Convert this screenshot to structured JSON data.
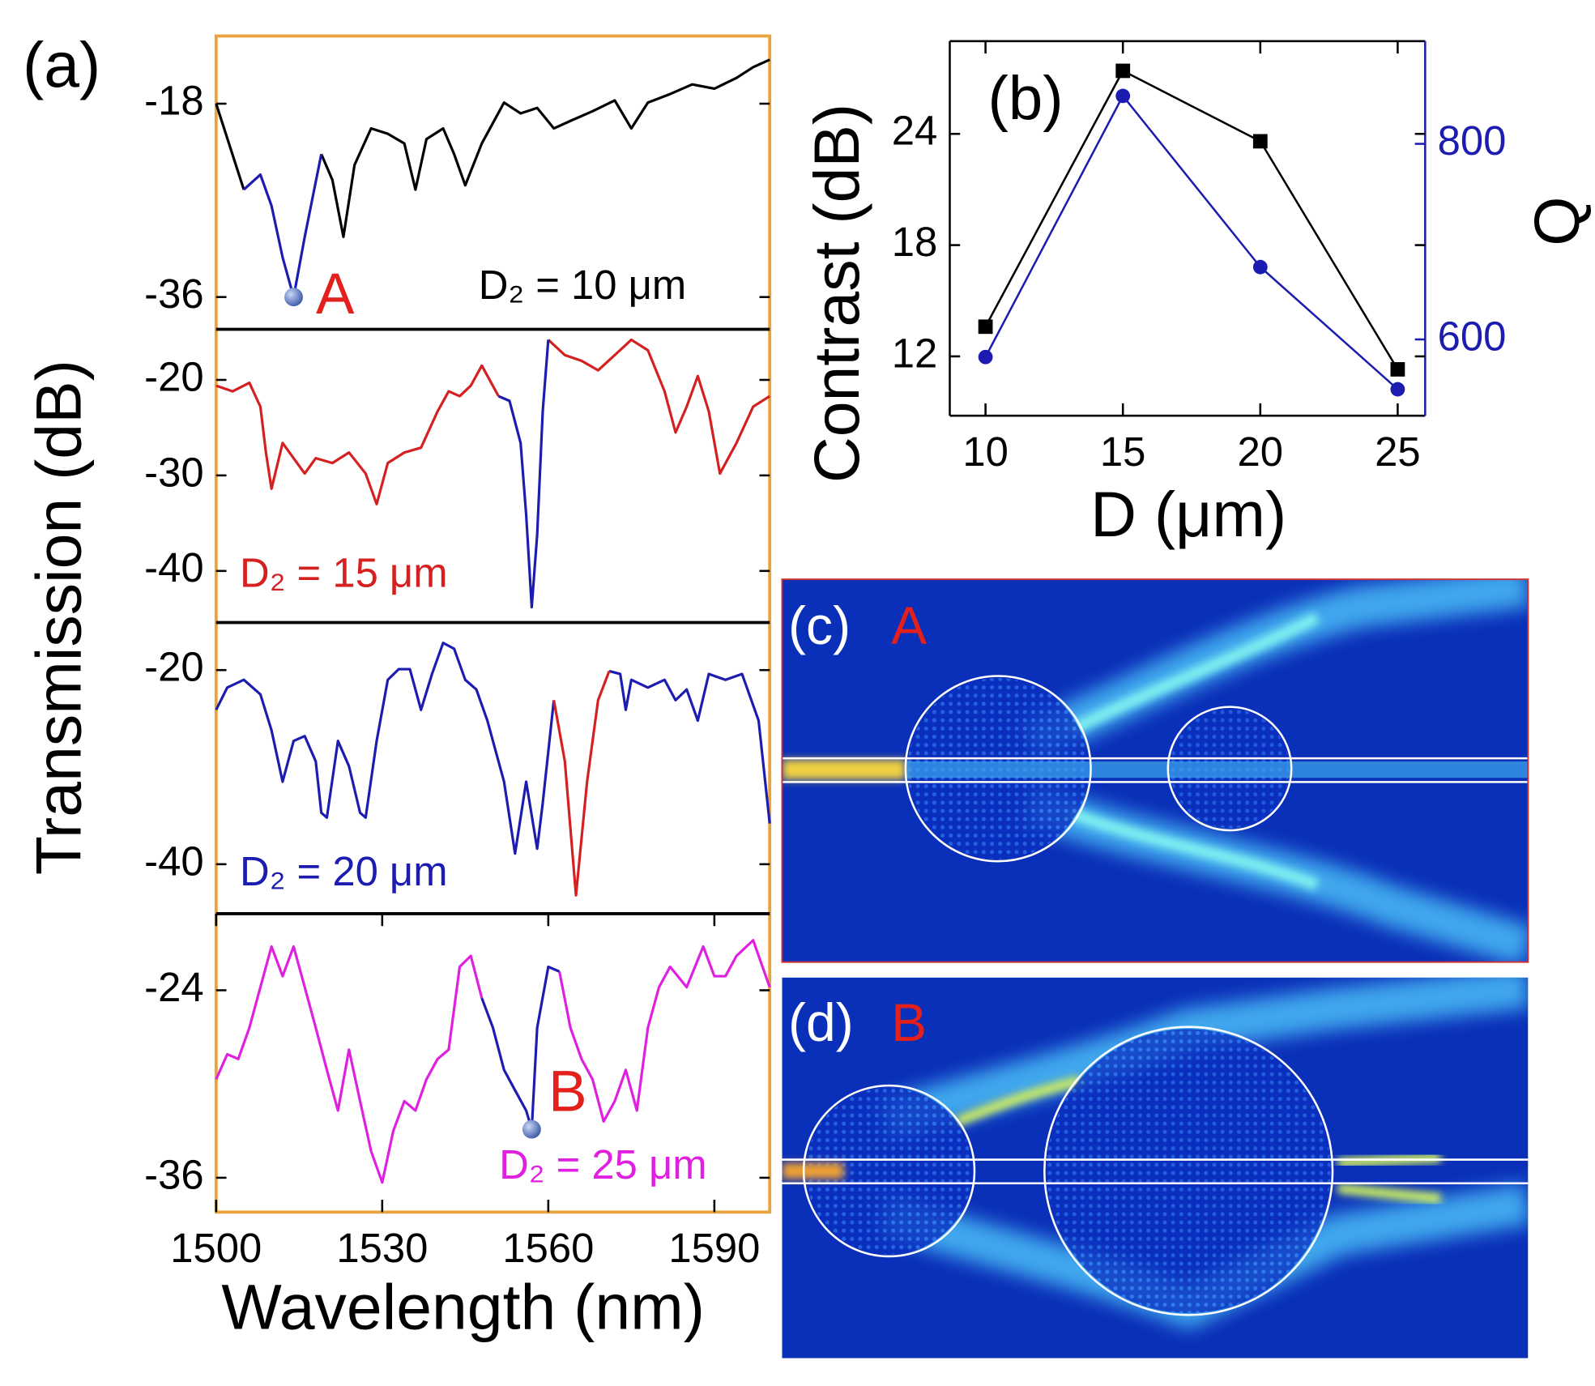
{
  "chart_data": [
    {
      "type": "line",
      "panel_label": "(a)",
      "ylabel": "Transmission (dB)",
      "x": [
        1500,
        1505,
        1508,
        1510,
        1512,
        1514,
        1516,
        1519,
        1521,
        1523,
        1525,
        1528,
        1531,
        1534,
        1536,
        1538,
        1541,
        1543,
        1545,
        1548,
        1552,
        1555,
        1558,
        1561,
        1564,
        1568,
        1572,
        1575,
        1578,
        1582,
        1586,
        1590,
        1594,
        1597,
        1600
      ],
      "series": [
        {
          "color": "#000000",
          "values": [
            -18,
            -26.0,
            null,
            null,
            null,
            null,
            null,
            -22.7,
            -25.1,
            -30.4,
            -23.7,
            -20.3,
            -20.8,
            -21.7,
            -26.0,
            -21.3,
            -20.3,
            -22.7,
            -25.6,
            -21.7,
            -17.9,
            -18.9,
            -18.4,
            -20.3,
            -19.6,
            -18.7,
            -17.7,
            -20.3,
            -17.9,
            -17.1,
            -16.2,
            -16.6,
            -15.6,
            -14.6,
            -13.9
          ]
        },
        {
          "color": "#1c1cb0",
          "values": [
            null,
            -26.0,
            -24.6,
            -27.5,
            -32.3,
            -36,
            -30.4,
            -22.7,
            null,
            null,
            null,
            null,
            null,
            null,
            null,
            null,
            null,
            null,
            null,
            null,
            null,
            null,
            null,
            null,
            null,
            null,
            null,
            null,
            null,
            null,
            null,
            null,
            null,
            null,
            null
          ]
        }
      ],
      "point_marker": true,
      "xlim": [
        1500,
        1600
      ],
      "ylim": [
        -39,
        -11.7
      ],
      "yticks": [
        -18,
        -36
      ],
      "annotations": [
        {
          "text": "A",
          "color": "#e3201b"
        },
        {
          "text": "D₂ = 10 μm",
          "color": "#000000"
        }
      ]
    },
    {
      "type": "line",
      "x": [
        1500,
        1503,
        1506,
        1508,
        1509,
        1510,
        1512,
        1514,
        1516,
        1518,
        1521,
        1524,
        1527,
        1529,
        1531,
        1534,
        1537,
        1540,
        1542,
        1544,
        1546,
        1548,
        1551,
        1553,
        1555,
        1556,
        1557,
        1558,
        1559,
        1560,
        1563,
        1566,
        1569,
        1572,
        1575,
        1578,
        1581,
        1583,
        1585,
        1587,
        1589,
        1591,
        1594,
        1597,
        1600
      ],
      "series": [
        {
          "color": "#d42020",
          "values": [
            -20.6,
            -21.2,
            -20.3,
            -22.8,
            -27.6,
            -31.4,
            -26.6,
            -28.2,
            -29.8,
            -28.2,
            -28.7,
            -27.6,
            -29.8,
            -33.0,
            -28.7,
            -27.6,
            -27.1,
            -23.3,
            -21.2,
            -21.7,
            -20.6,
            -18.5,
            -21.7,
            null,
            null,
            null,
            null,
            null,
            null,
            -15.8,
            -17.4,
            -18.0,
            -19.0,
            -17.4,
            -15.8,
            -16.9,
            -21.2,
            -25.5,
            -22.8,
            -19.6,
            -23.3,
            -29.8,
            -26.6,
            -22.8,
            -21.7
          ]
        },
        {
          "color": "#1c1cb0",
          "values": [
            null,
            null,
            null,
            null,
            null,
            null,
            null,
            null,
            null,
            null,
            null,
            null,
            null,
            null,
            null,
            null,
            null,
            null,
            null,
            null,
            null,
            null,
            -21.7,
            -22.2,
            -26.6,
            -34.1,
            -43.8,
            -36.2,
            -23.3,
            -15.8,
            null,
            null,
            null,
            null,
            null,
            null,
            null,
            null,
            null,
            null,
            null,
            null,
            null,
            null,
            null
          ]
        }
      ],
      "xlim": [
        1500,
        1600
      ],
      "ylim": [
        -45.4,
        -14.7
      ],
      "yticks": [
        -20,
        -30,
        -40
      ],
      "annotations": [
        {
          "text": "D₂ = 15 μm",
          "color": "#d42020"
        }
      ]
    },
    {
      "type": "line",
      "x": [
        1500,
        1502,
        1505,
        1508,
        1510,
        1512,
        1514,
        1516,
        1518,
        1519,
        1520,
        1522,
        1524,
        1526,
        1527,
        1529,
        1531,
        1533,
        1535,
        1537,
        1539,
        1541,
        1543,
        1545,
        1547,
        1549,
        1552,
        1554,
        1556,
        1558,
        1559,
        1561,
        1563,
        1565,
        1567,
        1569,
        1571,
        1573,
        1574,
        1575,
        1578,
        1581,
        1583,
        1585,
        1587,
        1589,
        1592,
        1595,
        1598,
        1600
      ],
      "series": [
        {
          "color": "#1c1cb0",
          "values": [
            -24.1,
            -21.8,
            -21.0,
            -22.5,
            -26.2,
            -31.5,
            -27.3,
            -26.8,
            -29.4,
            -34.7,
            -35.2,
            -27.3,
            -29.9,
            -34.7,
            -35.2,
            -27.3,
            -21.0,
            -19.9,
            -19.9,
            -24.1,
            -20.4,
            -17.2,
            -17.8,
            -21.0,
            -22.0,
            -25.2,
            -31.5,
            -38.9,
            -31.5,
            -38.4,
            -33.7,
            -23.1,
            null,
            null,
            null,
            null,
            -20.1,
            -20.4,
            -24.1,
            -21.0,
            -21.8,
            -21.0,
            -23.1,
            -22.0,
            -25.2,
            -20.4,
            -21.0,
            -20.4,
            -25.2,
            -35.8
          ]
        },
        {
          "color": "#d42020",
          "values": [
            null,
            null,
            null,
            null,
            null,
            null,
            null,
            null,
            null,
            null,
            null,
            null,
            null,
            null,
            null,
            null,
            null,
            null,
            null,
            null,
            null,
            null,
            null,
            null,
            null,
            null,
            null,
            null,
            null,
            null,
            null,
            -23.1,
            -29.4,
            -43.2,
            -31.5,
            -23.1,
            -20.1,
            null,
            null,
            null,
            null,
            null,
            null,
            null,
            null,
            null,
            null,
            null,
            null,
            null
          ]
        }
      ],
      "xlim": [
        1500,
        1600
      ],
      "ylim": [
        -45.1,
        -15.1
      ],
      "yticks": [
        -20,
        -40
      ],
      "annotations": [
        {
          "text": "D₂ = 20 μm",
          "color": "#1c1cb0"
        }
      ]
    },
    {
      "type": "line",
      "xlabel": "Wavelength (nm)",
      "x": [
        1500,
        1502,
        1504,
        1506,
        1508,
        1510,
        1512,
        1514,
        1516,
        1518,
        1520,
        1522,
        1524,
        1526,
        1528,
        1530,
        1532,
        1534,
        1536,
        1538,
        1540,
        1542,
        1544,
        1546,
        1548,
        1550,
        1552,
        1554,
        1556,
        1557,
        1558,
        1560,
        1562,
        1564,
        1566,
        1568,
        1570,
        1572,
        1574,
        1576,
        1578,
        1580,
        1582,
        1585,
        1588,
        1590,
        1592,
        1594,
        1597,
        1600
      ],
      "series": [
        {
          "color": "#e020e0",
          "values": [
            -29.7,
            -28.1,
            -28.4,
            -26.4,
            -23.8,
            -21.2,
            -23.1,
            -21.2,
            -23.8,
            -26.4,
            -29.1,
            -31.7,
            -27.8,
            -31.1,
            -34.3,
            -36.3,
            -33.0,
            -31.1,
            -31.7,
            -29.7,
            -28.4,
            -27.8,
            -22.5,
            -21.8,
            -24.5,
            null,
            null,
            null,
            null,
            null,
            null,
            null,
            -22.8,
            -26.4,
            -28.4,
            -29.7,
            -32.4,
            -31.1,
            -29.1,
            -31.7,
            -26.4,
            -23.8,
            -22.5,
            -23.8,
            -21.2,
            -23.1,
            -23.1,
            -21.8,
            -20.8,
            -23.8
          ]
        },
        {
          "color": "#1c1cb0",
          "values": [
            null,
            null,
            null,
            null,
            null,
            null,
            null,
            null,
            null,
            null,
            null,
            null,
            null,
            null,
            null,
            null,
            null,
            null,
            null,
            null,
            null,
            null,
            null,
            null,
            -24.5,
            -26.4,
            -29.1,
            -30.4,
            -31.7,
            -32.9,
            -26.4,
            -22.5,
            -22.8,
            null,
            null,
            null,
            null,
            null,
            null,
            null,
            null,
            null,
            null,
            null,
            null,
            null,
            null,
            null,
            null,
            null
          ]
        }
      ],
      "point_marker": true,
      "xlim": [
        1500,
        1600
      ],
      "xticks": [
        1500,
        1530,
        1560,
        1590
      ],
      "ylim": [
        -38.2,
        -19.1
      ],
      "yticks": [
        -24,
        -36
      ],
      "annotations": [
        {
          "text": "B",
          "color": "#e3201b"
        },
        {
          "text": "D₂ = 25 μm",
          "color": "#e020e0"
        }
      ]
    },
    {
      "type": "line",
      "panel_label": "(b)",
      "xlabel": "D (μm)",
      "ylabel": "Contrast (dB)",
      "y2label": "Q",
      "x": [
        10,
        15,
        20,
        25
      ],
      "series": [
        {
          "color": "#000000",
          "marker": "square",
          "values": [
            13.6,
            27.4,
            23.6,
            11.3
          ]
        },
        {
          "color": "#1c1cb0",
          "marker": "circle",
          "axis": "y2",
          "values": [
            582,
            849,
            674,
            549
          ]
        }
      ],
      "xlim": [
        8.7,
        26
      ],
      "xticks": [
        10,
        15,
        20,
        25
      ],
      "ylim": [
        8.8,
        29
      ],
      "yticks": [
        12,
        18,
        24
      ],
      "y2lim": [
        522,
        905
      ],
      "y2ticks": [
        600,
        800
      ]
    }
  ],
  "images": [
    {
      "label": "(c)",
      "marker": "A"
    },
    {
      "label": "(d)",
      "marker": "B"
    }
  ]
}
